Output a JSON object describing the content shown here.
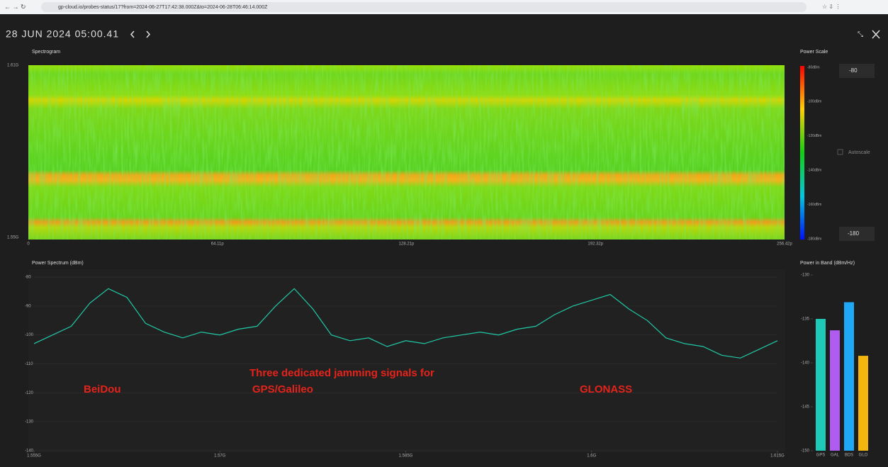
{
  "browser": {
    "url": "gp-cloud.io/probes-status/17?from=2024-06-27T17:42:38.000Z&to=2024-06-28T06:46:14.000Z"
  },
  "header": {
    "timestamp": "28 JUN 2024 05:00.41"
  },
  "spectrogram": {
    "title": "Spectrogram",
    "y_labels": [
      "1.61G",
      "1.55G"
    ],
    "x_labels": [
      "0",
      "64.11p",
      "128.21p",
      "192.32p",
      "256.42p"
    ]
  },
  "power_scale": {
    "title": "Power Scale",
    "labels": [
      "-80dBm",
      "-100dBm",
      "-120dBm",
      "-140dBm",
      "-160dBm",
      "-180dBm"
    ],
    "max_input": -80,
    "min_input": -180,
    "autoscale": "Autoscale"
  },
  "chart_data": [
    {
      "type": "line",
      "title": "Power Spectrum (dBm)",
      "color": "#20c9a6",
      "x": [
        1.555,
        1.5565,
        1.558,
        1.5595,
        1.561,
        1.5625,
        1.564,
        1.5655,
        1.567,
        1.5685,
        1.57,
        1.5715,
        1.573,
        1.5745,
        1.576,
        1.5775,
        1.579,
        1.5805,
        1.582,
        1.5835,
        1.585,
        1.5865,
        1.588,
        1.5895,
        1.591,
        1.5925,
        1.594,
        1.5955,
        1.597,
        1.5985,
        1.6,
        1.6015,
        1.603,
        1.6045,
        1.606,
        1.6075,
        1.609,
        1.6105,
        1.612,
        1.6135,
        1.615
      ],
      "values": [
        -103,
        -100,
        -97,
        -89,
        -84,
        -87,
        -96,
        -99,
        -101,
        -99,
        -100,
        -98,
        -97,
        -90,
        -84,
        -91,
        -100,
        -102,
        -101,
        -104,
        -102,
        -103,
        -101,
        -100,
        -99,
        -100,
        -98,
        -97,
        -93,
        -90,
        -88,
        -86,
        -91,
        -95,
        -101,
        -103,
        -104,
        -107,
        -108,
        -105,
        -102
      ],
      "xlim": [
        1.555,
        1.615
      ],
      "xticks": [
        {
          "value": 1.555,
          "label": "1.555G"
        },
        {
          "value": 1.57,
          "label": "1.57G"
        },
        {
          "value": 1.585,
          "label": "1.585G"
        },
        {
          "value": 1.6,
          "label": "1.6G"
        },
        {
          "value": 1.615,
          "label": "1.615G"
        }
      ],
      "ylim": [
        -140,
        -80
      ],
      "yticks": [
        -80,
        -90,
        -100,
        -110,
        -120,
        -130,
        -140
      ],
      "grid": true,
      "annotations": [
        "BeiDou",
        "Three dedicated jamming signals for",
        "GPS/Galileo",
        "GLONASS"
      ]
    },
    {
      "type": "bar",
      "title": "Power in Band (dBm/Hz)",
      "categories": [
        "GPS",
        "GAL",
        "BDS",
        "GLO"
      ],
      "values": [
        -135,
        -136.3,
        -133.1,
        -139.2
      ],
      "colors": [
        "#1ec9b8",
        "#b15cf0",
        "#1ea8f5",
        "#f5b50f"
      ],
      "ylim": [
        -150,
        -130
      ],
      "yticks": [
        -130,
        -135,
        -140,
        -145,
        -150
      ]
    }
  ]
}
